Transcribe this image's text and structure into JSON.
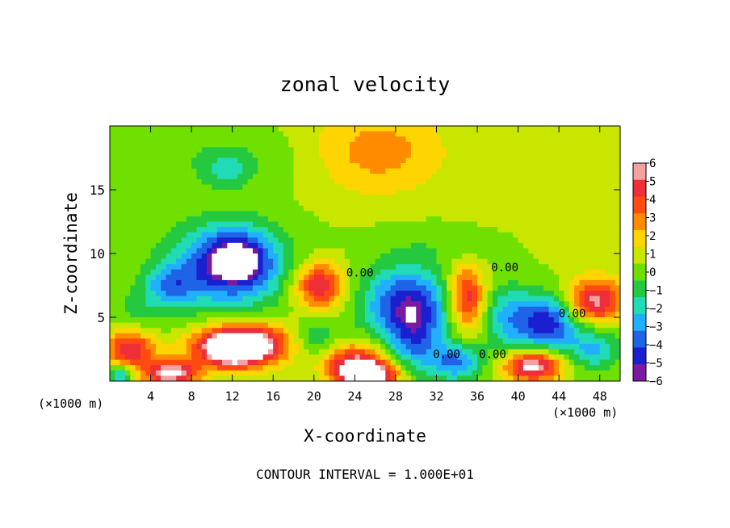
{
  "chart_data": {
    "type": "heatmap",
    "title": "zonal velocity",
    "xlabel": "X-coordinate",
    "ylabel": "Z-coordinate",
    "x_unit_label": "(×1000 m)",
    "y_unit_label": "(×1000 m)",
    "xlim": [
      0,
      50
    ],
    "ylim": [
      0,
      20
    ],
    "x_ticks": [
      4,
      8,
      12,
      16,
      20,
      24,
      28,
      32,
      36,
      40,
      44,
      48
    ],
    "y_ticks": [
      5,
      10,
      15
    ],
    "footer": "CONTOUR INTERVAL = 1.000E+01",
    "contour_labels": [
      {
        "text": "0.00",
        "x": 24.5,
        "y": 8.2
      },
      {
        "text": "0.00",
        "x": 38.7,
        "y": 8.6
      },
      {
        "text": "0.00",
        "x": 45.3,
        "y": 5.0
      },
      {
        "text": "0.00",
        "x": 33.0,
        "y": 1.8
      },
      {
        "text": "0.00",
        "x": 37.5,
        "y": 1.8
      }
    ],
    "colorbar": {
      "ticks": [
        6,
        5,
        4,
        3,
        2,
        1,
        0,
        -1,
        -2,
        -3,
        -4,
        -5,
        -6
      ],
      "colors": [
        "#f3a2a2",
        "#ee2f3a",
        "#ff4a10",
        "#ff8c00",
        "#ffd500",
        "#c8e600",
        "#6fe000",
        "#25c940",
        "#21dab6",
        "#20b0ff",
        "#1f63e6",
        "#1a20d0",
        "#7a1aa0"
      ]
    },
    "field": {
      "background_value": 0.5,
      "blobs": [
        {
          "x": 26,
          "y": 18,
          "rx": 7,
          "ry": 3.5,
          "v": 2.6
        },
        {
          "x": 12,
          "y": 17.5,
          "rx": 10,
          "ry": 2.5,
          "v": -1.0
        },
        {
          "x": 11.5,
          "y": 16.5,
          "rx": 2.2,
          "ry": 1.3,
          "v": -1.8
        },
        {
          "x": 3,
          "y": 16,
          "rx": 3,
          "ry": 3,
          "v": -0.4
        },
        {
          "x": 11.5,
          "y": 9,
          "rx": 5.8,
          "ry": 3.4,
          "v": -5.0
        },
        {
          "x": 12.5,
          "y": 9.5,
          "rx": 3.0,
          "ry": 2.0,
          "v": -4.0
        },
        {
          "x": 6,
          "y": 7.5,
          "rx": 2.5,
          "ry": 1.6,
          "v": -3.0
        },
        {
          "x": 3,
          "y": 5.5,
          "rx": 3,
          "ry": 2,
          "v": -1.2
        },
        {
          "x": 20.5,
          "y": 7.5,
          "rx": 2.4,
          "ry": 1.8,
          "v": 5.2
        },
        {
          "x": 29,
          "y": 6,
          "rx": 4.2,
          "ry": 3.0,
          "v": -5.5
        },
        {
          "x": 30,
          "y": 3,
          "rx": 2.5,
          "ry": 3,
          "v": -3.0
        },
        {
          "x": 35,
          "y": 6.5,
          "rx": 1.8,
          "ry": 2.5,
          "v": 5.0
        },
        {
          "x": 39,
          "y": 5,
          "rx": 2.5,
          "ry": 2.5,
          "v": -3.0
        },
        {
          "x": 43,
          "y": 4.5,
          "rx": 3,
          "ry": 2.2,
          "v": -5.5
        },
        {
          "x": 47.5,
          "y": 6.3,
          "rx": 2.8,
          "ry": 1.8,
          "v": 5.5
        },
        {
          "x": 47.5,
          "y": 2.5,
          "rx": 2.5,
          "ry": 1.8,
          "v": -3.0
        },
        {
          "x": 14,
          "y": 3,
          "rx": 5,
          "ry": 1.6,
          "v": 4.5
        },
        {
          "x": 12,
          "y": 2.5,
          "rx": 3.5,
          "ry": 1.5,
          "v": 6.5
        },
        {
          "x": 2,
          "y": 2.5,
          "rx": 2.5,
          "ry": 1.5,
          "v": 5.0
        },
        {
          "x": 6,
          "y": 0.6,
          "rx": 2.6,
          "ry": 1.0,
          "v": 6.2
        },
        {
          "x": 20,
          "y": 3.2,
          "rx": 2.5,
          "ry": 1.5,
          "v": -2.5
        },
        {
          "x": 24,
          "y": 1.5,
          "rx": 3,
          "ry": 1.5,
          "v": 4.8
        },
        {
          "x": 25.5,
          "y": 0.5,
          "rx": 3,
          "ry": 1.0,
          "v": 6.5
        },
        {
          "x": 41.5,
          "y": 1.2,
          "rx": 2.8,
          "ry": 1.2,
          "v": 6.5
        },
        {
          "x": 34,
          "y": 1.5,
          "rx": 2.5,
          "ry": 1.5,
          "v": -4.0
        },
        {
          "x": 1,
          "y": 0.5,
          "rx": 1.2,
          "ry": 0.8,
          "v": -3.5
        },
        {
          "x": 36,
          "y": 10.5,
          "rx": 4,
          "ry": 1.2,
          "v": -0.8
        },
        {
          "x": 42,
          "y": 12,
          "rx": 6,
          "ry": 2.5,
          "v": 0.3
        },
        {
          "x": 30,
          "y": 11,
          "rx": 5,
          "ry": 1.5,
          "v": -0.5
        }
      ]
    }
  }
}
